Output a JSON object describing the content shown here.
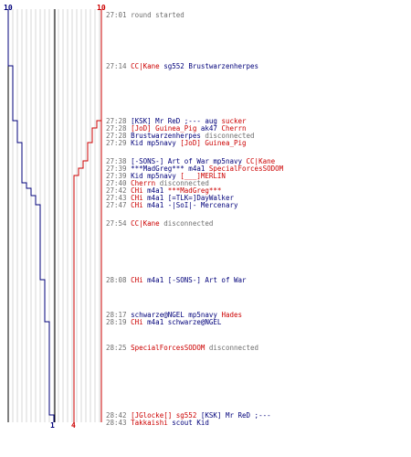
{
  "colors": {
    "team_a": "#cc0000",
    "team_b": "#00007a",
    "muted": "#6e6e6e",
    "grid": "#bdbdbd"
  },
  "scores": {
    "team_b_start": "10",
    "team_a_start": "10",
    "team_b_end": "1",
    "team_a_end": "4"
  },
  "events": [
    {
      "time": "27:01",
      "parts": [
        {
          "text": "round started",
          "c": "grey"
        }
      ]
    },
    {
      "time": "27:14",
      "parts": [
        {
          "text": "CC|Kane",
          "c": "red"
        },
        {
          "text": " sg552 ",
          "c": "blue"
        },
        {
          "text": "Brustwarzenherpes",
          "c": "blue"
        }
      ]
    },
    {
      "time": "27:28",
      "parts": [
        {
          "text": "[KSK] Mr ReD ;---",
          "c": "blue"
        },
        {
          "text": " aug ",
          "c": "blue"
        },
        {
          "text": "sucker",
          "c": "red"
        }
      ]
    },
    {
      "time": "27:28",
      "parts": [
        {
          "text": "[JoD] Guinea_Pig",
          "c": "red"
        },
        {
          "text": " ak47 ",
          "c": "blue"
        },
        {
          "text": "Cherrn",
          "c": "red"
        }
      ]
    },
    {
      "time": "27:28",
      "parts": [
        {
          "text": "Brustwarzenherpes",
          "c": "blue"
        },
        {
          "text": " disconnected",
          "c": "grey"
        }
      ]
    },
    {
      "time": "27:29",
      "parts": [
        {
          "text": "Kid",
          "c": "blue"
        },
        {
          "text": " mp5navy ",
          "c": "blue"
        },
        {
          "text": "[JoD] Guinea_Pig",
          "c": "red"
        }
      ]
    },
    {
      "time": "27:38",
      "parts": [
        {
          "text": "[-SONS-] Art of War",
          "c": "blue"
        },
        {
          "text": " mp5navy ",
          "c": "blue"
        },
        {
          "text": "CC|Kane",
          "c": "red"
        }
      ]
    },
    {
      "time": "27:39",
      "parts": [
        {
          "text": "***MadGreg***",
          "c": "blue"
        },
        {
          "text": " m4a1 ",
          "c": "blue"
        },
        {
          "text": "SpecialForcesSODOM",
          "c": "red"
        }
      ]
    },
    {
      "time": "27:39",
      "parts": [
        {
          "text": "Kid",
          "c": "blue"
        },
        {
          "text": " mp5navy ",
          "c": "blue"
        },
        {
          "text": "[___]MERLIN",
          "c": "red"
        }
      ]
    },
    {
      "time": "27:40",
      "parts": [
        {
          "text": "Cherrn",
          "c": "red"
        },
        {
          "text": " disconnected",
          "c": "grey"
        }
      ]
    },
    {
      "time": "27:42",
      "parts": [
        {
          "text": "CHi",
          "c": "red"
        },
        {
          "text": " m4a1 ",
          "c": "blue"
        },
        {
          "text": "***MadGreg***",
          "c": "red"
        }
      ]
    },
    {
      "time": "27:43",
      "parts": [
        {
          "text": "CHi",
          "c": "red"
        },
        {
          "text": " m4a1 ",
          "c": "blue"
        },
        {
          "text": "[=TLK=]DayWalker",
          "c": "blue"
        }
      ]
    },
    {
      "time": "27:47",
      "parts": [
        {
          "text": "CHi",
          "c": "red"
        },
        {
          "text": " m4a1 ",
          "c": "blue"
        },
        {
          "text": "-|SoI|- Mercenary",
          "c": "blue"
        }
      ]
    },
    {
      "time": "27:54",
      "parts": [
        {
          "text": "CC|Kane",
          "c": "red"
        },
        {
          "text": " disconnected",
          "c": "grey"
        }
      ]
    },
    {
      "time": "28:08",
      "parts": [
        {
          "text": "CHi",
          "c": "red"
        },
        {
          "text": " m4a1 ",
          "c": "blue"
        },
        {
          "text": "[-SONS-] Art of War",
          "c": "blue"
        }
      ]
    },
    {
      "time": "28:17",
      "parts": [
        {
          "text": "schwarze@NGEL",
          "c": "blue"
        },
        {
          "text": " mp5navy ",
          "c": "blue"
        },
        {
          "text": "Hades",
          "c": "red"
        }
      ]
    },
    {
      "time": "28:19",
      "parts": [
        {
          "text": "CHi",
          "c": "red"
        },
        {
          "text": " m4a1 ",
          "c": "blue"
        },
        {
          "text": "schwarze@NGEL",
          "c": "blue"
        }
      ]
    },
    {
      "time": "28:25",
      "parts": [
        {
          "text": "SpecialForcesSODOM",
          "c": "red"
        },
        {
          "text": " disconnected",
          "c": "grey"
        }
      ]
    },
    {
      "time": "28:42",
      "parts": [
        {
          "text": "[JGlocke[] sg552",
          "c": "red"
        },
        {
          "text": " ",
          "c": "blue"
        },
        {
          "text": "[KSK] Mr ReD ;---",
          "c": "blue"
        }
      ]
    },
    {
      "time": "28:43",
      "parts": [
        {
          "text": "Takkaishi",
          "c": "red"
        },
        {
          "text": " scout ",
          "c": "blue"
        },
        {
          "text": "Kid",
          "c": "blue"
        }
      ]
    }
  ]
}
